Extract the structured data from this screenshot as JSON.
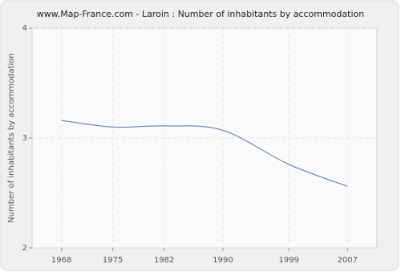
{
  "chart_data": {
    "type": "line",
    "title": "www.Map-France.com - Laroin : Number of inhabitants by accommodation",
    "y_label": "Number of inhabitants by accommodation",
    "x": [
      1968,
      1975,
      1982,
      1990,
      1999,
      2007
    ],
    "series": [
      {
        "name": "Number of inhabitants by accommodation",
        "color": "#4a76a8",
        "values": [
          3.16,
          3.1,
          3.11,
          3.07,
          2.76,
          2.56
        ]
      }
    ],
    "xlim": [
      1964,
      2011
    ],
    "ylim": [
      2,
      4
    ],
    "yticks": [
      2,
      3,
      4
    ],
    "grid": true
  }
}
